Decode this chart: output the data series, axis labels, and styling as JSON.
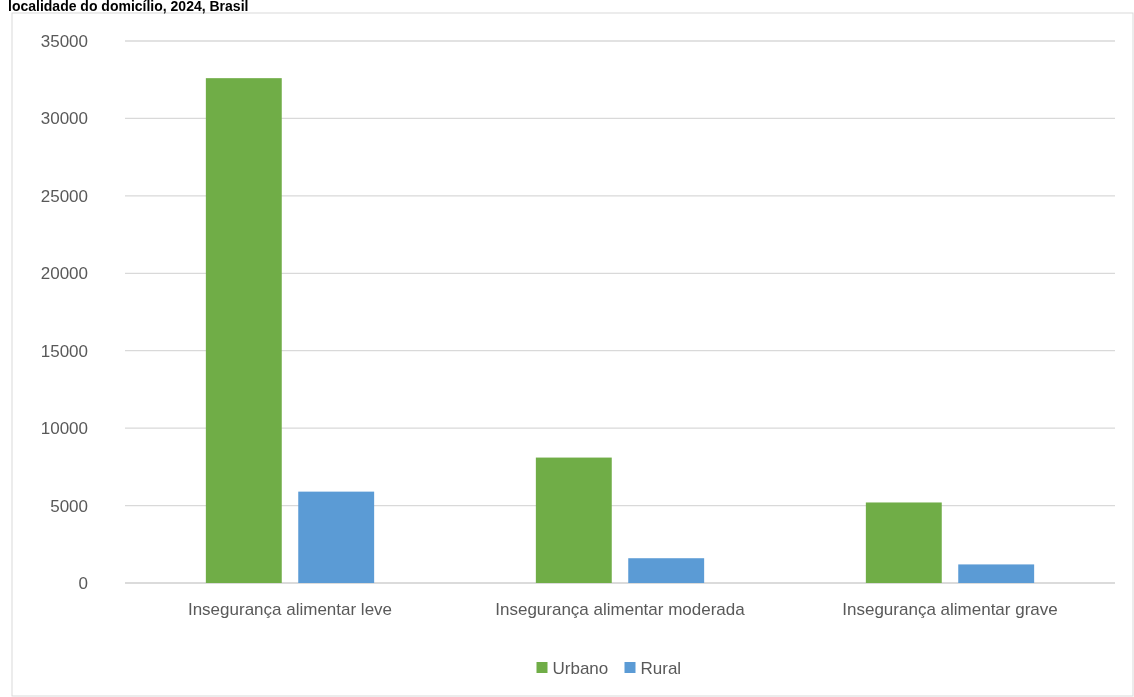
{
  "chart_data": {
    "type": "bar",
    "title": "localidade do domicílio, 2024, Brasil",
    "categories": [
      "Insegurança alimentar leve",
      "Insegurança alimentar moderada",
      "Insegurança alimentar grave"
    ],
    "series": [
      {
        "name": "Urbano",
        "color": "#70ad47",
        "values": [
          32600,
          8100,
          5200
        ]
      },
      {
        "name": "Rural",
        "color": "#5b9bd5",
        "values": [
          5900,
          1600,
          1200
        ]
      }
    ],
    "ylim": [
      0,
      35000
    ],
    "yticks": [
      0,
      5000,
      10000,
      15000,
      20000,
      25000,
      30000,
      35000
    ],
    "grid": "y",
    "legend": "bottom"
  }
}
